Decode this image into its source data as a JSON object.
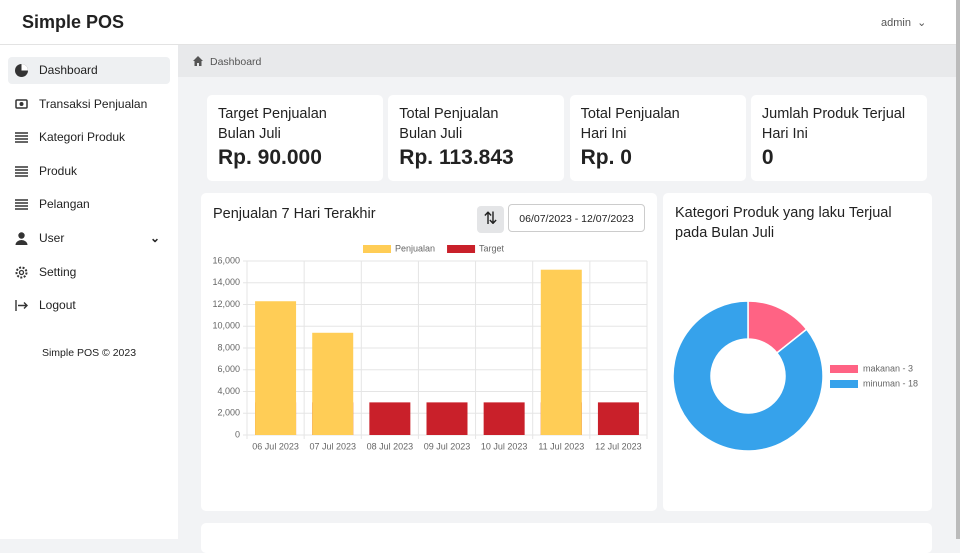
{
  "header": {
    "brand": "Simple POS",
    "user": "admin"
  },
  "sidebar": {
    "items": [
      "Dashboard",
      "Transaksi Penjualan",
      "Kategori Produk",
      "Produk",
      "Pelangan",
      "User",
      "Setting",
      "Logout"
    ],
    "footer": "Simple POS © 2023"
  },
  "breadcrumb": "Dashboard",
  "cards": [
    {
      "label_lines": [
        "Target Penjualan",
        "Bulan Juli"
      ],
      "value": "Rp. 90.000"
    },
    {
      "label_lines": [
        "Total Penjualan",
        "Bulan Juli"
      ],
      "value": "Rp. 113.843"
    },
    {
      "label_lines": [
        "Total Penjualan",
        "Hari Ini"
      ],
      "value": "Rp. 0"
    },
    {
      "label_lines": [
        "Jumlah Produk Terjual",
        "Hari Ini"
      ],
      "value": "0"
    }
  ],
  "filter": {
    "date_range": "06/07/2023 - 12/07/2023"
  },
  "chart_data": [
    {
      "type": "bar",
      "title": "Penjualan 7 Hari Terakhir",
      "categories": [
        "06 Jul 2023",
        "07 Jul 2023",
        "08 Jul 2023",
        "09 Jul 2023",
        "10 Jul 2023",
        "11 Jul 2023",
        "12 Jul 2023"
      ],
      "series": [
        {
          "name": "Penjualan",
          "color": "#ffcd56",
          "values": [
            12300,
            9400,
            0,
            0,
            0,
            15200,
            0
          ]
        },
        {
          "name": "Target",
          "color": "#c9202a",
          "values": [
            3000,
            3000,
            3000,
            3000,
            3000,
            3000,
            3000
          ]
        }
      ],
      "ylim": [
        0,
        16000
      ],
      "yticks": [
        0,
        {
          "value": 2000,
          "label": "2,000"
        },
        {
          "value": 4000,
          "label": "4,000"
        },
        {
          "value": 6000,
          "label": "6,000"
        },
        {
          "value": 8000,
          "label": "8,000"
        },
        {
          "value": 10000,
          "label": "10,000"
        },
        {
          "value": 12000,
          "label": "12,000"
        },
        {
          "value": 14000,
          "label": "14,000"
        },
        {
          "value": 16000,
          "label": "16,000"
        }
      ],
      "grid": true,
      "legend": "top"
    },
    {
      "type": "doughnut",
      "title": "Kategori Produk yang laku Terjual pada Bulan Juli",
      "categories": [
        "makanan - 3",
        "minuman - 18"
      ],
      "values": [
        3,
        18
      ],
      "colors": [
        "#ff6384",
        "#36a2eb"
      ],
      "legend": "right"
    }
  ]
}
